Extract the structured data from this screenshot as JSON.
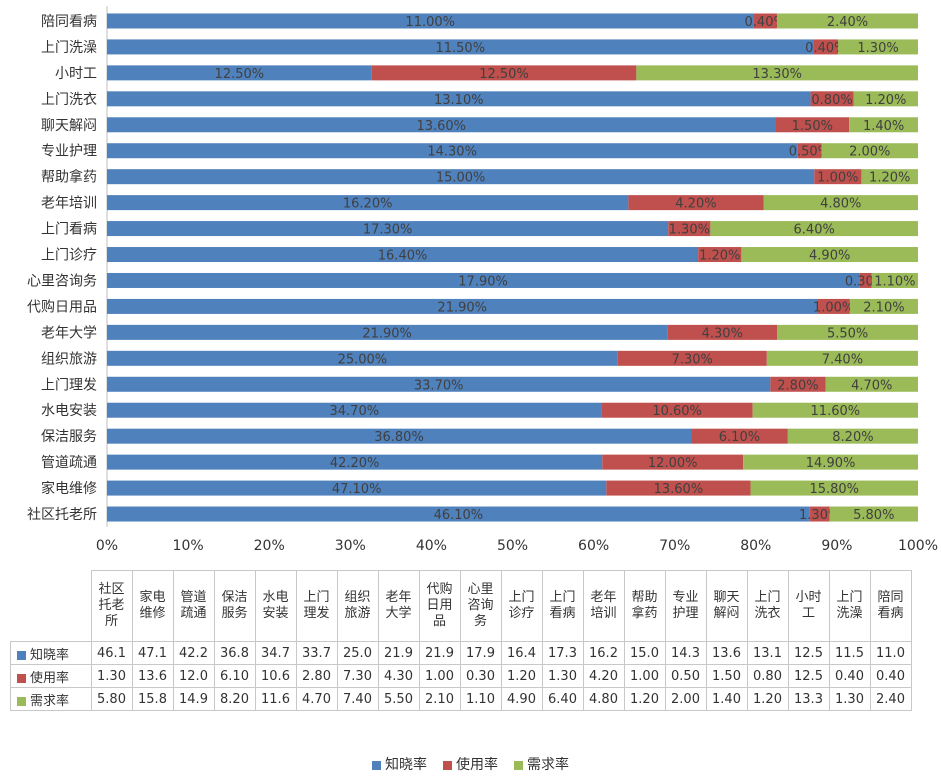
{
  "chart_data": {
    "type": "bar",
    "orientation": "horizontal",
    "stacked": true,
    "categories": [
      "社区托老所",
      "家电维修",
      "管道疏通",
      "保洁服务",
      "水电安装",
      "上门理发",
      "组织旅游",
      "老年大学",
      "代购日用品",
      "心里咨询务",
      "上门诊疗",
      "上门看病",
      "老年培训",
      "帮助拿药",
      "专业护理",
      "聊天解闷",
      "上门洗衣",
      "小时工",
      "上门洗澡",
      "陪同看病"
    ],
    "series": [
      {
        "name": "知晓率",
        "color": "#4f81bd",
        "values": [
          46.1,
          47.1,
          42.2,
          36.8,
          34.7,
          33.7,
          25.0,
          21.9,
          21.9,
          17.9,
          16.4,
          17.3,
          16.2,
          15.0,
          14.3,
          13.6,
          13.1,
          12.5,
          11.5,
          11.0
        ],
        "labels": [
          "46.10%",
          "47.10%",
          "42.20%",
          "36.80%",
          "34.70%",
          "33.70%",
          "25.00%",
          "21.90%",
          "21.90%",
          "17.90%",
          "16.40%",
          "17.30%",
          "16.20%",
          "15.00%",
          "14.30%",
          "13.60%",
          "13.10%",
          "12.50%",
          "11.50%",
          "11.00%"
        ],
        "table": [
          "46.1",
          "47.1",
          "42.2",
          "36.8",
          "34.7",
          "33.7",
          "25.0",
          "21.9",
          "21.9",
          "17.9",
          "16.4",
          "17.3",
          "16.2",
          "15.0",
          "14.3",
          "13.6",
          "13.1",
          "12.5",
          "11.5",
          "11.0"
        ]
      },
      {
        "name": "使用率",
        "color": "#c0504d",
        "values": [
          1.3,
          13.6,
          12.0,
          6.1,
          10.6,
          2.8,
          7.3,
          4.3,
          1.0,
          0.3,
          1.2,
          1.3,
          4.2,
          1.0,
          0.5,
          1.5,
          0.8,
          12.5,
          0.4,
          0.4
        ],
        "labels": [
          "1.30%",
          "13.60%",
          "12.00%",
          "6.10%",
          "10.60%",
          "2.80%",
          "7.30%",
          "4.30%",
          "1.00%",
          "0.30%",
          "1.20%",
          "1.30%",
          "4.20%",
          "1.00%",
          "0.50%",
          "1.50%",
          "0.80%",
          "12.50%",
          "0.40%",
          "0.40%"
        ],
        "table": [
          "1.30",
          "13.6",
          "12.0",
          "6.10",
          "10.6",
          "2.80",
          "7.30",
          "4.30",
          "1.00",
          "0.30",
          "1.20",
          "1.30",
          "4.20",
          "1.00",
          "0.50",
          "1.50",
          "0.80",
          "12.5",
          "0.40",
          "0.40"
        ]
      },
      {
        "name": "需求率",
        "color": "#9bbb59",
        "values": [
          5.8,
          15.8,
          14.9,
          8.2,
          11.6,
          4.7,
          7.4,
          5.5,
          2.1,
          1.1,
          4.9,
          6.4,
          4.8,
          1.2,
          2.0,
          1.4,
          1.2,
          13.3,
          1.3,
          2.4
        ],
        "labels": [
          "5.80%",
          "15.80%",
          "14.90%",
          "8.20%",
          "11.60%",
          "4.70%",
          "7.40%",
          "5.50%",
          "2.10%",
          "1.10%",
          "4.90%",
          "6.40%",
          "4.80%",
          "1.20%",
          "2.00%",
          "1.40%",
          "1.20%",
          "13.30%",
          "1.30%",
          "2.40%"
        ],
        "table": [
          "5.80",
          "15.8",
          "14.9",
          "8.20",
          "11.6",
          "4.70",
          "7.40",
          "5.50",
          "2.10",
          "1.10",
          "4.90",
          "6.40",
          "4.80",
          "1.20",
          "2.00",
          "1.40",
          "1.20",
          "13.3",
          "1.30",
          "2.40"
        ]
      }
    ],
    "xticks": [
      "0%",
      "10%",
      "20%",
      "30%",
      "40%",
      "50%",
      "60%",
      "70%",
      "80%",
      "90%",
      "100%"
    ],
    "xlim": [
      0,
      100
    ],
    "grid": false,
    "legend_position": "bottom",
    "data_table": true,
    "table_categories": [
      [
        "社区",
        "托老",
        "所"
      ],
      [
        "家电",
        "维修"
      ],
      [
        "管道",
        "疏通"
      ],
      [
        "保洁",
        "服务"
      ],
      [
        "水电",
        "安装"
      ],
      [
        "上门",
        "理发"
      ],
      [
        "组织",
        "旅游"
      ],
      [
        "老年",
        "大学"
      ],
      [
        "代购",
        "日用",
        "品"
      ],
      [
        "心里",
        "咨询",
        "务"
      ],
      [
        "上门",
        "诊疗"
      ],
      [
        "上门",
        "看病"
      ],
      [
        "老年",
        "培训"
      ],
      [
        "帮助",
        "拿药"
      ],
      [
        "专业",
        "护理"
      ],
      [
        "聊天",
        "解闷"
      ],
      [
        "上门",
        "洗衣"
      ],
      [
        "小时",
        "工"
      ],
      [
        "上门",
        "洗澡"
      ],
      [
        "陪同",
        "看病"
      ]
    ]
  }
}
